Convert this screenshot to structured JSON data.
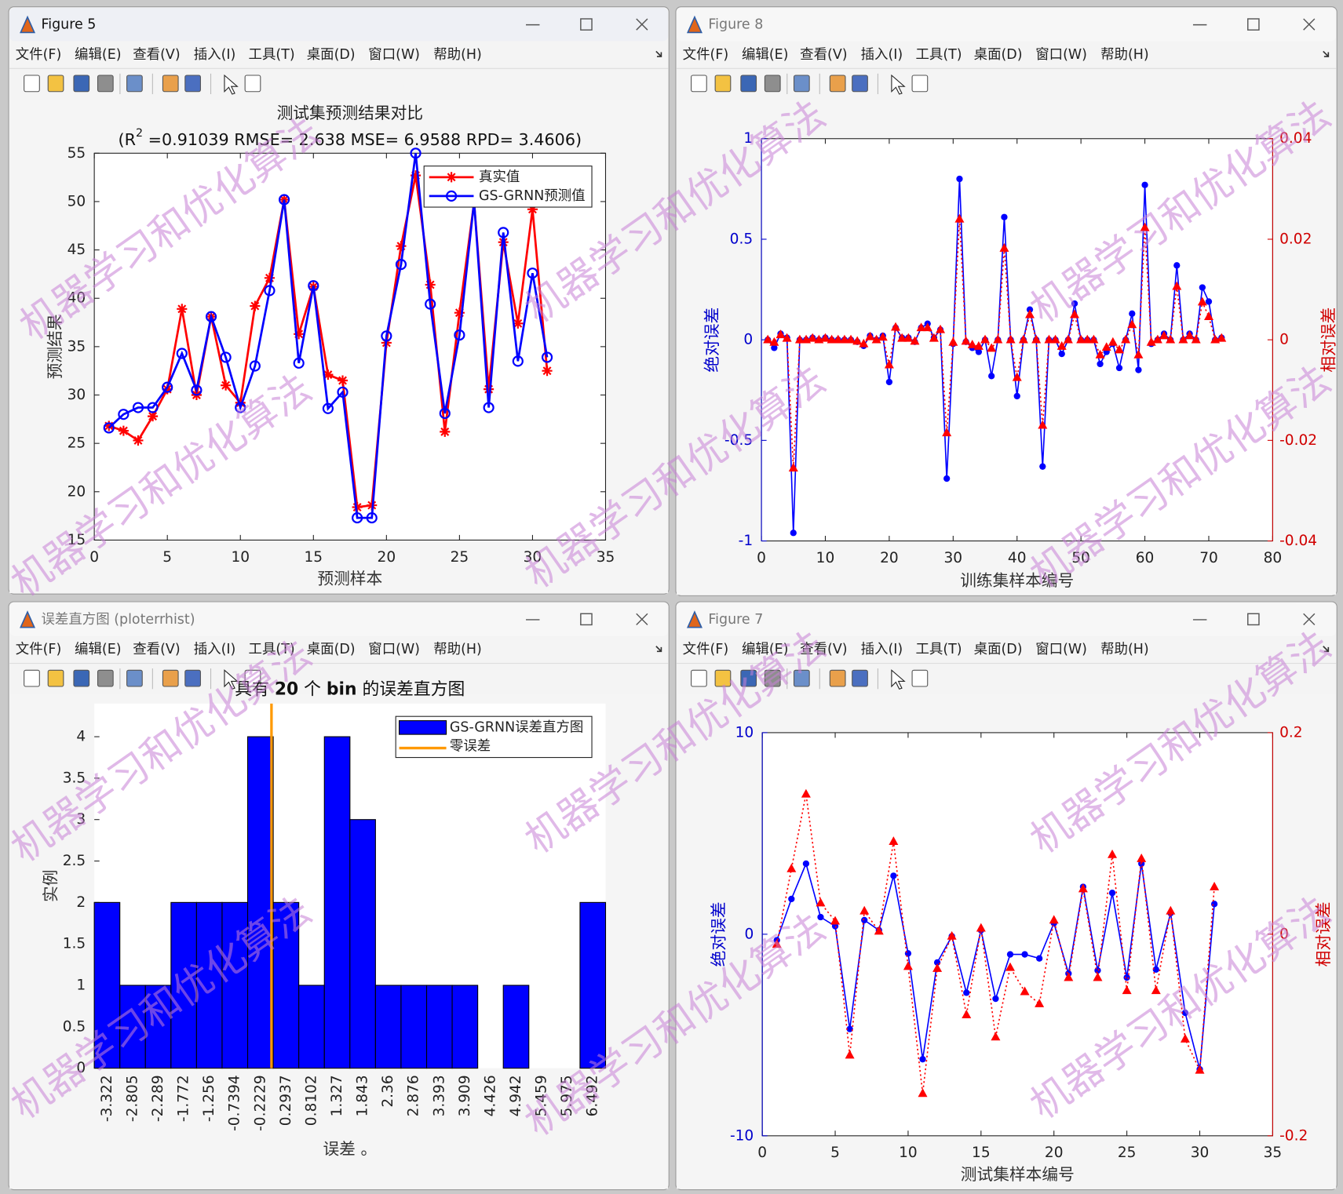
{
  "windows": [
    {
      "title": "Figure 5"
    },
    {
      "title": "Figure 8"
    },
    {
      "title": "误差直方图 (ploterrhist)"
    },
    {
      "title": "Figure 7"
    }
  ],
  "menu": [
    "文件(F)",
    "编辑(E)",
    "查看(V)",
    "插入(I)",
    "工具(T)",
    "桌面(D)",
    "窗口(W)",
    "帮助(H)"
  ],
  "watermark": "机器学习和优化算法",
  "chart_data": [
    {
      "type": "line",
      "title": "测试集预测结果对比",
      "subtitle": [
        "(R",
        "2",
        " =0.91039 RMSE= 2.638 MSE= 6.9588 RPD= 3.4606)"
      ],
      "xlabel": "预测样本",
      "ylabel": "预测结果",
      "x": [
        1,
        2,
        3,
        4,
        5,
        6,
        7,
        8,
        9,
        10,
        11,
        12,
        13,
        14,
        15,
        16,
        17,
        18,
        19,
        20,
        21,
        22,
        23,
        24,
        25,
        26,
        27,
        28,
        29,
        30,
        31
      ],
      "xlim": [
        0,
        35
      ],
      "xticks": [
        0,
        5,
        10,
        15,
        20,
        25,
        30,
        35
      ],
      "ylim": [
        15,
        55
      ],
      "yticks": [
        15,
        20,
        25,
        30,
        35,
        40,
        45,
        50,
        55
      ],
      "box": true,
      "legend": "northeast",
      "series": [
        {
          "name": "真实值",
          "color": "#ff0000",
          "marker": "asterisk",
          "linestyle": "solid",
          "linewidth": 2.5,
          "values": [
            26.8,
            26.3,
            25.3,
            27.8,
            30.6,
            38.9,
            30,
            38.1,
            31,
            29.2,
            39.2,
            42.1,
            50.2,
            36.3,
            41.2,
            32.1,
            31.5,
            18.4,
            18.6,
            35.4,
            45.4,
            52.7,
            41.4,
            26.2,
            38.5,
            49.9,
            30.6,
            45.8,
            37.4,
            49.2,
            32.5
          ]
        },
        {
          "name": "GS-GRNN预测值",
          "color": "#0000ff",
          "marker": "circle",
          "linestyle": "solid",
          "linewidth": 2.5,
          "values": [
            26.6,
            28,
            28.7,
            28.7,
            30.8,
            34.3,
            30.5,
            38.1,
            33.9,
            28.7,
            33,
            40.8,
            50.2,
            33.3,
            41.3,
            28.6,
            30.3,
            17.3,
            17.3,
            36.1,
            43.5,
            55,
            39.4,
            28.1,
            36.2,
            50,
            28.7,
            46.8,
            33.5,
            42.6,
            33.9
          ]
        }
      ]
    },
    {
      "type": "line",
      "xlabel": "训练集样本编号",
      "ylabel": "绝对误差",
      "y2label": "相对误差",
      "x": [
        1,
        2,
        3,
        4,
        5,
        6,
        7,
        8,
        9,
        10,
        11,
        12,
        13,
        14,
        15,
        16,
        17,
        18,
        19,
        20,
        21,
        22,
        23,
        24,
        25,
        26,
        27,
        28,
        29,
        30,
        31,
        32,
        33,
        34,
        35,
        36,
        37,
        38,
        39,
        40,
        41,
        42,
        43,
        44,
        45,
        46,
        47,
        48,
        49,
        50,
        51,
        52,
        53,
        54,
        55,
        56,
        57,
        58,
        59,
        60,
        61,
        62,
        63,
        64,
        65,
        66,
        67,
        68,
        69,
        70,
        71,
        72
      ],
      "xlim": [
        0,
        80
      ],
      "xticks": [
        0,
        10,
        20,
        30,
        40,
        50,
        60,
        70,
        80
      ],
      "ylim": [
        -1,
        1
      ],
      "yticks": [
        -1,
        -0.5,
        0,
        0.5,
        1
      ],
      "y2lim": [
        -0.04,
        0.04
      ],
      "y2ticks": [
        -0.04,
        -0.02,
        0,
        0.02,
        0.04
      ],
      "ycolor": "#0000cc",
      "y2color": "#d00000",
      "box": true,
      "series": [
        {
          "color": "#0000ff",
          "marker": "dot",
          "linestyle": "solid",
          "linewidth": 1.5,
          "axis": "y",
          "values": [
            0,
            -0.04,
            0.03,
            0.01,
            -0.96,
            0,
            0,
            0.01,
            0,
            0.01,
            0,
            0,
            0,
            0,
            -0.01,
            -0.03,
            0.02,
            0,
            0.02,
            -0.21,
            0.06,
            0.01,
            0.01,
            -0.01,
            0.06,
            0.08,
            0.01,
            0.05,
            -0.69,
            -0.02,
            0.8,
            -0.01,
            -0.04,
            -0.06,
            0,
            -0.18,
            0,
            0.61,
            0,
            -0.28,
            0,
            0.15,
            0,
            -0.63,
            0,
            0,
            -0.07,
            0,
            0.18,
            0,
            0,
            0,
            -0.12,
            -0.06,
            -0.02,
            -0.14,
            0,
            0.13,
            -0.15,
            0.77,
            -0.02,
            0,
            0.03,
            0,
            0.37,
            0,
            0.03,
            0,
            0.26,
            0.19,
            0,
            0.01
          ]
        },
        {
          "color": "#ff0000",
          "marker": "triangle",
          "linestyle": "dotted",
          "linewidth": 1.5,
          "axis": "y2",
          "values": [
            0,
            -0.0005,
            0.001,
            0.0003,
            -0.0255,
            0,
            0,
            0.0003,
            0,
            0.0003,
            0,
            0,
            0,
            0,
            -0.0003,
            -0.0008,
            0.0006,
            0,
            0.0005,
            -0.005,
            0.0025,
            0.0003,
            0.0003,
            -0.0003,
            0.0024,
            0.0024,
            0.0003,
            0.002,
            -0.0185,
            -0.0005,
            0.024,
            -0.0003,
            -0.001,
            -0.0013,
            0,
            -0.0017,
            0,
            0.0182,
            0,
            -0.0075,
            0,
            0.005,
            0,
            -0.017,
            0,
            0,
            -0.0013,
            0,
            0.005,
            0,
            0,
            0,
            -0.003,
            -0.0015,
            -0.0005,
            -0.002,
            0,
            0.003,
            -0.003,
            0.0223,
            -0.0005,
            0,
            0.0008,
            0,
            0.0106,
            0,
            0.0008,
            0,
            0.0075,
            0.0046,
            0,
            0.0003
          ]
        }
      ]
    },
    {
      "type": "histogram",
      "title": [
        "具有 ",
        "20",
        " 个 ",
        "bin",
        " 的误差直方图"
      ],
      "xlabel": "误差 。",
      "ylabel": "实例",
      "x": [
        -3.322,
        -2.805,
        -2.289,
        -1.772,
        -1.256,
        -0.7394,
        -0.2229,
        0.2937,
        0.8102,
        1.327,
        1.843,
        2.36,
        2.876,
        3.393,
        3.909,
        4.426,
        4.942,
        5.459,
        5.975,
        6.492
      ],
      "xlim": [
        -3.58,
        6.75
      ],
      "ylim": [
        0,
        4.4
      ],
      "yticks": [
        0,
        0.5,
        1,
        1.5,
        2,
        2.5,
        3,
        3.5,
        4
      ],
      "box": false,
      "legend": "northeast",
      "series": [
        {
          "name": "GS-GRNN误差直方图",
          "color": "#0000ff",
          "values": [
            2,
            1,
            1,
            2,
            2,
            2,
            4,
            2,
            1,
            4,
            3,
            1,
            1,
            1,
            1,
            0,
            1,
            0,
            0,
            2
          ]
        }
      ],
      "reference_line": {
        "name": "零误差",
        "color": "#ff9900",
        "x": 0
      }
    },
    {
      "type": "line",
      "xlabel": "测试集样本编号",
      "ylabel": "绝对误差",
      "y2label": "相对误差",
      "x": [
        1,
        2,
        3,
        4,
        5,
        6,
        7,
        8,
        9,
        10,
        11,
        12,
        13,
        14,
        15,
        16,
        17,
        18,
        19,
        20,
        21,
        22,
        23,
        24,
        25,
        26,
        27,
        28,
        29,
        30,
        31
      ],
      "xlim": [
        0,
        35
      ],
      "xticks": [
        0,
        5,
        10,
        15,
        20,
        25,
        30,
        35
      ],
      "ylim": [
        -10,
        10
      ],
      "yticks": [
        -10,
        0,
        10
      ],
      "y2lim": [
        -0.2,
        0.2
      ],
      "y2ticks": [
        -0.2,
        0,
        0.2
      ],
      "ycolor": "#0000cc",
      "y2color": "#d00000",
      "box": true,
      "series": [
        {
          "color": "#0000ff",
          "marker": "dot",
          "linestyle": "solid",
          "linewidth": 1.5,
          "axis": "y",
          "values": [
            -0.3,
            1.75,
            3.5,
            0.85,
            0.4,
            -4.7,
            0.7,
            0.2,
            2.9,
            -0.95,
            -6.2,
            -1.4,
            -0.1,
            -2.9,
            0.2,
            -3.2,
            -1,
            -1,
            -1.2,
            0.55,
            -1.95,
            2.35,
            -1.8,
            2.05,
            -2.15,
            3.5,
            -1.75,
            1.05,
            -3.9,
            -6.7,
            1.5
          ]
        },
        {
          "color": "#ff0000",
          "marker": "triangle",
          "linestyle": "dotted",
          "linewidth": 1.5,
          "axis": "y2",
          "values": [
            -0.01,
            0.065,
            0.139,
            0.031,
            0.013,
            -0.12,
            0.023,
            0.003,
            0.092,
            -0.032,
            -0.158,
            -0.034,
            -0.002,
            -0.08,
            0.006,
            -0.102,
            -0.033,
            -0.057,
            -0.069,
            0.014,
            -0.043,
            0.045,
            -0.043,
            0.079,
            -0.056,
            0.075,
            -0.056,
            0.023,
            -0.104,
            -0.135,
            0.047
          ]
        }
      ]
    }
  ]
}
